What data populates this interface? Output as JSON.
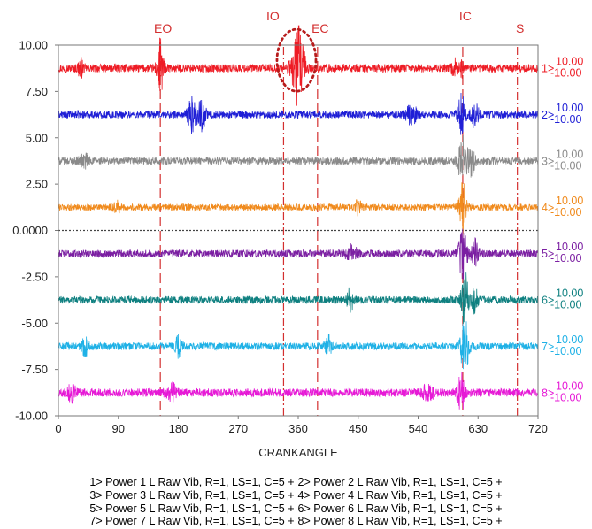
{
  "chart_data": {
    "type": "line",
    "xlabel": "CRANKANGLE",
    "xlim": [
      0,
      720
    ],
    "ylim": [
      -10,
      10
    ],
    "x_ticks": [
      0,
      90,
      180,
      270,
      360,
      450,
      540,
      630,
      720
    ],
    "x_tick_labels": [
      "0",
      "90",
      "180",
      "270",
      "360",
      "450",
      "540",
      "630",
      "720"
    ],
    "y_ticks": [
      10,
      7.5,
      5,
      2.5,
      0,
      -2.5,
      -5,
      -7.5,
      -10
    ],
    "y_tick_labels": [
      "10.00",
      "7.50",
      "5.00",
      "2.50",
      "0.0000",
      "-2.50",
      "-5.00",
      "-7.50",
      "-10.00"
    ],
    "zero_line": "dotted",
    "events": [
      {
        "label": "EO",
        "x": 153,
        "style": "dashed"
      },
      {
        "label": "IO",
        "x": 338,
        "style": "dashdot"
      },
      {
        "label": "EC",
        "x": 389,
        "style": "dashed"
      },
      {
        "label": "IC",
        "x": 607,
        "style": "dashed"
      },
      {
        "label": "S",
        "x": 689,
        "style": "dashdot"
      }
    ],
    "highlight": {
      "x": 360,
      "y": 8.8,
      "description": "dotted ellipse around burst on trace 1"
    },
    "series": [
      {
        "id": "1>",
        "name": "Power 1 L Raw Vib, R=1, LS=1, C=5",
        "color": "#ee1c25",
        "baseline": 8.75,
        "scale_max": "10.00",
        "scale_min": "-10.00",
        "noise": 0.22,
        "bursts": [
          [
            33,
            0.45,
            4
          ],
          [
            153,
            1.6,
            5
          ],
          [
            360,
            2.2,
            9
          ],
          [
            595,
            0.5,
            4
          ],
          [
            605,
            0.4,
            3
          ]
        ]
      },
      {
        "id": "2>",
        "name": "Power 2 L Raw Vib, R=1, LS=1, C=5",
        "color": "#1f1fd6",
        "baseline": 6.25,
        "scale_max": "10.00",
        "scale_min": "-10.00",
        "noise": 0.2,
        "bursts": [
          [
            200,
            0.9,
            6
          ],
          [
            215,
            0.8,
            6
          ],
          [
            530,
            0.5,
            8
          ],
          [
            605,
            1.0,
            6
          ],
          [
            625,
            0.8,
            5
          ]
        ]
      },
      {
        "id": "3>",
        "name": "Power 3 L Raw Vib, R=1, LS=1, C=5",
        "color": "#8a8a8a",
        "baseline": 3.75,
        "scale_max": "10.00",
        "scale_min": "-10.00",
        "noise": 0.2,
        "bursts": [
          [
            40,
            0.3,
            8
          ],
          [
            607,
            1.2,
            7
          ],
          [
            620,
            0.7,
            5
          ]
        ]
      },
      {
        "id": "4>",
        "name": "Power 4 L Raw Vib, R=1, LS=1, C=5",
        "color": "#f08a1c",
        "baseline": 1.25,
        "scale_max": "10.00",
        "scale_min": "-10.00",
        "noise": 0.18,
        "bursts": [
          [
            88,
            0.25,
            6
          ],
          [
            450,
            0.4,
            4
          ],
          [
            607,
            1.3,
            5
          ]
        ]
      },
      {
        "id": "5>",
        "name": "Power 5 L Raw Vib, R=1, LS=1, C=5",
        "color": "#7b1fa2",
        "baseline": -1.25,
        "scale_max": "10.00",
        "scale_min": "-10.00",
        "noise": 0.2,
        "bursts": [
          [
            440,
            0.4,
            8
          ],
          [
            607,
            1.3,
            6
          ],
          [
            625,
            0.7,
            5
          ]
        ]
      },
      {
        "id": "6>",
        "name": "Power 6 L Raw Vib, R=1, LS=1, C=5",
        "color": "#0f8080",
        "baseline": -3.75,
        "scale_max": "10.00",
        "scale_min": "-10.00",
        "noise": 0.2,
        "bursts": [
          [
            438,
            0.7,
            4
          ],
          [
            610,
            1.6,
            5
          ],
          [
            625,
            0.8,
            4
          ]
        ]
      },
      {
        "id": "7>",
        "name": "Power 7 L Raw Vib, R=1, LS=1, C=5",
        "color": "#1fb1e6",
        "baseline": -6.25,
        "scale_max": "10.00",
        "scale_min": "-10.00",
        "noise": 0.2,
        "bursts": [
          [
            40,
            0.45,
            5
          ],
          [
            180,
            0.5,
            5
          ],
          [
            405,
            0.5,
            5
          ],
          [
            610,
            1.5,
            6
          ]
        ]
      },
      {
        "id": "8>",
        "name": "Power 8 L Raw Vib, R=1, LS=1, C=5",
        "color": "#e619d6",
        "baseline": -8.75,
        "scale_max": "10.00",
        "scale_min": "-10.00",
        "noise": 0.22,
        "bursts": [
          [
            20,
            0.4,
            6
          ],
          [
            170,
            0.4,
            8
          ],
          [
            555,
            0.4,
            8
          ],
          [
            605,
            1.2,
            5
          ]
        ]
      }
    ]
  }
}
